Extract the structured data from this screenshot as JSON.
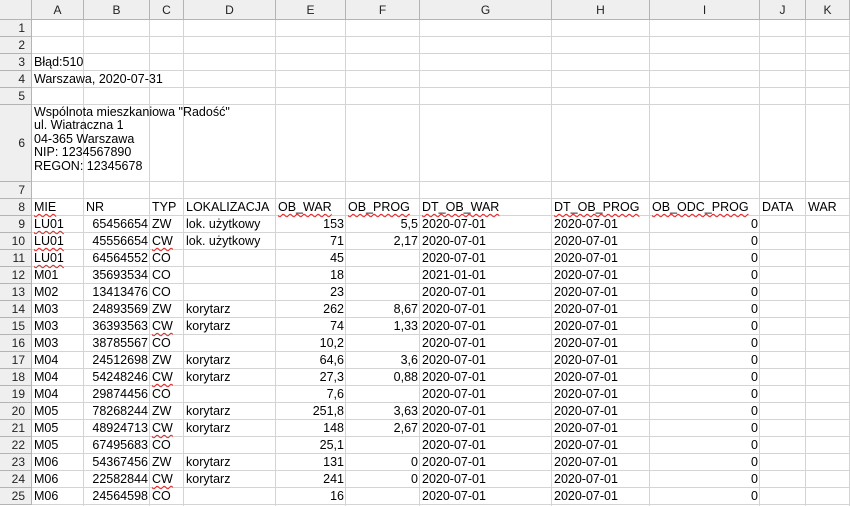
{
  "columns": [
    "A",
    "B",
    "C",
    "D",
    "E",
    "F",
    "G",
    "H",
    "I",
    "J",
    "K"
  ],
  "rows": [
    "1",
    "2",
    "3",
    "4",
    "5",
    "6",
    "7",
    "8",
    "9",
    "10",
    "11",
    "12",
    "13",
    "14",
    "15",
    "16",
    "17",
    "18",
    "19",
    "20",
    "21",
    "22",
    "23",
    "24",
    "25"
  ],
  "header_block": {
    "line3": "Błąd:510",
    "line4": "Warszawa, 2020-07-31",
    "address": [
      "Wspólnota mieszkaniowa \"Radość\"",
      "ul. Wiatraczna 1",
      "04-365 Warszawa",
      "NIP: 1234567890",
      "REGON: 12345678"
    ]
  },
  "table": {
    "headers": [
      "MIE",
      "NR",
      "TYP",
      "LOKALIZACJA",
      "OB_WAR",
      "OB_PROG",
      "DT_OB_WAR",
      "DT_OB_PROG",
      "OB_ODC_PROG",
      "DATA",
      "WAR"
    ],
    "rows": [
      [
        "LU01",
        "65456654",
        "ZW",
        "lok. użytkowy",
        "153",
        "5,5",
        "2020-07-01",
        "2020-07-01",
        "0"
      ],
      [
        "LU01",
        "45556654",
        "CW",
        "lok. użytkowy",
        "71",
        "2,17",
        "2020-07-01",
        "2020-07-01",
        "0"
      ],
      [
        "LU01",
        "64564552",
        "CO",
        "",
        "45",
        "",
        "2020-07-01",
        "2020-07-01",
        "0"
      ],
      [
        "M01",
        "35693534",
        "CO",
        "",
        "18",
        "",
        "2021-01-01",
        "2020-07-01",
        "0"
      ],
      [
        "M02",
        "13413476",
        "CO",
        "",
        "23",
        "",
        "2020-07-01",
        "2020-07-01",
        "0"
      ],
      [
        "M03",
        "24893569",
        "ZW",
        "korytarz",
        "262",
        "8,67",
        "2020-07-01",
        "2020-07-01",
        "0"
      ],
      [
        "M03",
        "36393563",
        "CW",
        "korytarz",
        "74",
        "1,33",
        "2020-07-01",
        "2020-07-01",
        "0"
      ],
      [
        "M03",
        "38785567",
        "CO",
        "",
        "10,2",
        "",
        "2020-07-01",
        "2020-07-01",
        "0"
      ],
      [
        "M04",
        "24512698",
        "ZW",
        "korytarz",
        "64,6",
        "3,6",
        "2020-07-01",
        "2020-07-01",
        "0"
      ],
      [
        "M04",
        "54248246",
        "CW",
        "korytarz",
        "27,3",
        "0,88",
        "2020-07-01",
        "2020-07-01",
        "0"
      ],
      [
        "M04",
        "29874456",
        "CO",
        "",
        "7,6",
        "",
        "2020-07-01",
        "2020-07-01",
        "0"
      ],
      [
        "M05",
        "78268244",
        "ZW",
        "korytarz",
        "251,8",
        "3,63",
        "2020-07-01",
        "2020-07-01",
        "0"
      ],
      [
        "M05",
        "48924713",
        "CW",
        "korytarz",
        "148",
        "2,67",
        "2020-07-01",
        "2020-07-01",
        "0"
      ],
      [
        "M05",
        "67495683",
        "CO",
        "",
        "25,1",
        "",
        "2020-07-01",
        "2020-07-01",
        "0"
      ],
      [
        "M06",
        "54367456",
        "ZW",
        "korytarz",
        "131",
        "0",
        "2020-07-01",
        "2020-07-01",
        "0"
      ],
      [
        "M06",
        "22582844",
        "CW",
        "korytarz",
        "241",
        "0",
        "2020-07-01",
        "2020-07-01",
        "0"
      ],
      [
        "M06",
        "24564598",
        "CO",
        "",
        "16",
        "",
        "2020-07-01",
        "2020-07-01",
        "0"
      ]
    ]
  }
}
